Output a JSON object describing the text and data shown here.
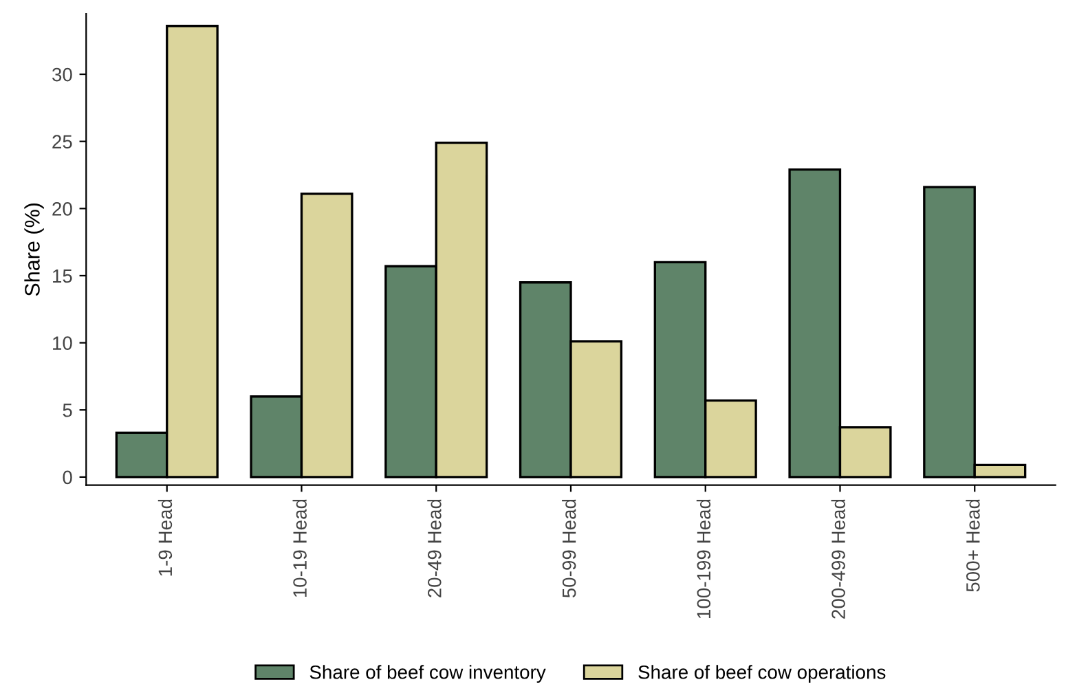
{
  "chart_data": {
    "type": "bar",
    "ylabel": "Share (%)",
    "categories": [
      "1-9 Head",
      "10-19 Head",
      "20-49 Head",
      "50-99 Head",
      "100-199 Head",
      "200-499 Head",
      "500+ Head"
    ],
    "series": [
      {
        "name": "Share of beef cow inventory",
        "color": "#5f8469",
        "values": [
          3.3,
          6.0,
          15.7,
          14.5,
          16.0,
          22.9,
          21.6
        ]
      },
      {
        "name": "Share of beef cow operations",
        "color": "#dbd59c",
        "values": [
          33.6,
          21.1,
          24.9,
          10.1,
          5.7,
          3.7,
          0.9
        ]
      }
    ],
    "ylim": [
      -0.6,
      34.5
    ],
    "yticks": [
      0,
      5,
      10,
      15,
      20,
      25,
      30
    ],
    "grid": false,
    "legend": "bottom"
  }
}
